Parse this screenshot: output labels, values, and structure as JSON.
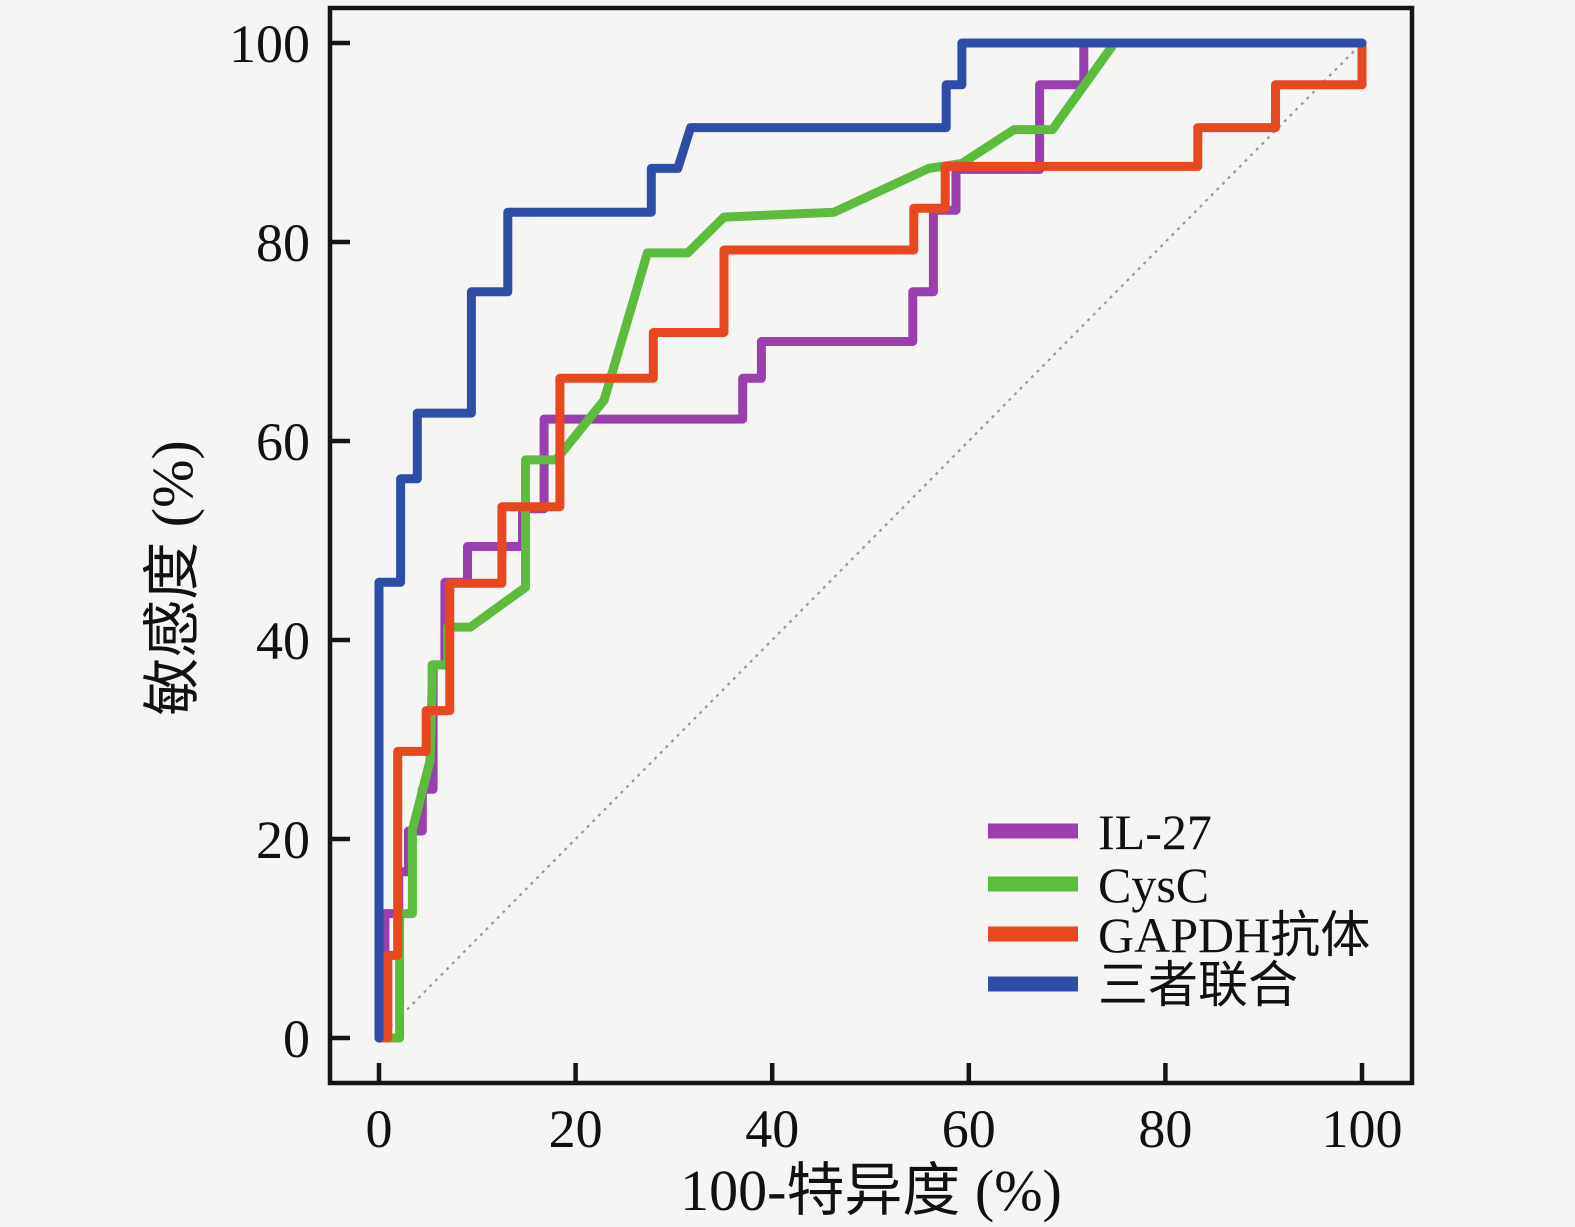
{
  "figure": {
    "background": "#f5f5f3",
    "axis_color": "#151515",
    "tick_label_color": "#111111",
    "reference_line_color": "#999999"
  },
  "chart_data": {
    "type": "line",
    "subtype": "roc-step-curves",
    "title": "",
    "xlabel": "100-特异度 (%)",
    "ylabel": "敏感度 (%)",
    "xlim": [
      0,
      100
    ],
    "ylim": [
      0,
      100
    ],
    "x_ticks": [
      0,
      20,
      40,
      60,
      80,
      100
    ],
    "y_ticks": [
      0,
      20,
      40,
      60,
      80,
      100
    ],
    "grid": false,
    "legend_position": "lower right",
    "reference_line": {
      "from": [
        0,
        0
      ],
      "to": [
        100,
        100
      ],
      "style": "dashed",
      "color": "#999999"
    },
    "legend": [
      {
        "label": "IL-27",
        "color": "#9a3fae"
      },
      {
        "label": "CysC",
        "color": "#5cbd3c"
      },
      {
        "label": "GAPDH抗体",
        "color": "#e8481e"
      },
      {
        "label": "三者联合",
        "color": "#2e4da6"
      }
    ],
    "series": [
      {
        "name": "IL-27",
        "color": "#9a3fae",
        "points": [
          [
            0,
            0
          ],
          [
            0.6,
            0
          ],
          [
            0.6,
            12.5
          ],
          [
            2,
            12.5
          ],
          [
            2,
            16.7
          ],
          [
            3,
            16.7
          ],
          [
            3,
            20.8
          ],
          [
            4.4,
            20.8
          ],
          [
            4.4,
            25
          ],
          [
            5.5,
            25
          ],
          [
            5.5,
            37.5
          ],
          [
            6.7,
            37.5
          ],
          [
            6.7,
            45.8
          ],
          [
            9,
            45.8
          ],
          [
            9,
            49.4
          ],
          [
            14.6,
            49.4
          ],
          [
            14.6,
            53.2
          ],
          [
            16.8,
            53.2
          ],
          [
            16.8,
            62.2
          ],
          [
            37,
            62.2
          ],
          [
            37,
            66.3
          ],
          [
            38.9,
            66.3
          ],
          [
            38.9,
            70
          ],
          [
            54.3,
            70
          ],
          [
            54.3,
            75
          ],
          [
            56.4,
            75
          ],
          [
            56.4,
            83.2
          ],
          [
            58.7,
            83.2
          ],
          [
            58.7,
            87.3
          ],
          [
            67.2,
            87.3
          ],
          [
            67.2,
            95.8
          ],
          [
            71.7,
            95.8
          ],
          [
            71.7,
            100
          ],
          [
            100,
            100
          ]
        ]
      },
      {
        "name": "CysC",
        "color": "#5cbd3c",
        "points": [
          [
            0,
            0
          ],
          [
            2.1,
            0
          ],
          [
            2.1,
            12.5
          ],
          [
            3.4,
            12.5
          ],
          [
            3.4,
            20.9
          ],
          [
            5.2,
            27.9
          ],
          [
            5.4,
            35.4
          ],
          [
            5.4,
            37.5
          ],
          [
            7,
            37.5
          ],
          [
            7,
            41.3
          ],
          [
            9.3,
            41.3
          ],
          [
            14.9,
            45.3
          ],
          [
            14.9,
            58.1
          ],
          [
            18,
            58.1
          ],
          [
            22.9,
            64.1
          ],
          [
            27.3,
            78.9
          ],
          [
            31.4,
            78.9
          ],
          [
            35.1,
            82.5
          ],
          [
            46.3,
            83
          ],
          [
            55.9,
            87.4
          ],
          [
            59.3,
            87.9
          ],
          [
            64.6,
            91.3
          ],
          [
            68.5,
            91.3
          ],
          [
            74.6,
            99.7
          ],
          [
            74.6,
            100
          ],
          [
            100,
            100
          ]
        ]
      },
      {
        "name": "GAPDH抗体",
        "color": "#e8481e",
        "points": [
          [
            0,
            0
          ],
          [
            0.9,
            0
          ],
          [
            0.9,
            8.3
          ],
          [
            1.9,
            8.3
          ],
          [
            1.9,
            28.8
          ],
          [
            4.8,
            28.8
          ],
          [
            4.8,
            32.9
          ],
          [
            7.2,
            32.9
          ],
          [
            7.2,
            45.7
          ],
          [
            12.5,
            45.7
          ],
          [
            12.5,
            53.4
          ],
          [
            18.4,
            53.4
          ],
          [
            18.4,
            66.3
          ],
          [
            27.9,
            66.3
          ],
          [
            27.9,
            70.9
          ],
          [
            35.1,
            70.9
          ],
          [
            35.1,
            79.2
          ],
          [
            54.4,
            79.2
          ],
          [
            54.4,
            83.4
          ],
          [
            57.6,
            83.4
          ],
          [
            57.6,
            87.6
          ],
          [
            83.3,
            87.6
          ],
          [
            83.3,
            91.5
          ],
          [
            91.2,
            91.5
          ],
          [
            91.2,
            95.8
          ],
          [
            100,
            95.8
          ],
          [
            100,
            100
          ]
        ]
      },
      {
        "name": "三者联合",
        "color": "#2e4da6",
        "points": [
          [
            0,
            0
          ],
          [
            0,
            45.8
          ],
          [
            2.2,
            45.8
          ],
          [
            2.2,
            56.2
          ],
          [
            3.9,
            56.2
          ],
          [
            3.9,
            62.8
          ],
          [
            9.4,
            62.8
          ],
          [
            9.4,
            75
          ],
          [
            13.1,
            75
          ],
          [
            13.1,
            83
          ],
          [
            27.7,
            83
          ],
          [
            27.7,
            87.4
          ],
          [
            30.4,
            87.4
          ],
          [
            31.7,
            91.5
          ],
          [
            57.7,
            91.5
          ],
          [
            57.7,
            95.8
          ],
          [
            59.3,
            95.8
          ],
          [
            59.3,
            100
          ],
          [
            100,
            100
          ]
        ]
      }
    ]
  }
}
